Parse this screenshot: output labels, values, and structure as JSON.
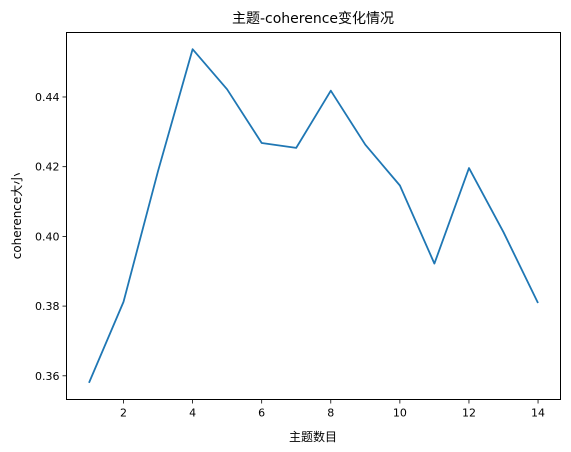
{
  "chart_data": {
    "type": "line",
    "title": "主题-coherence变化情况",
    "xlabel": "主题数目",
    "ylabel": "coherence大小",
    "x": [
      1,
      2,
      3,
      4,
      5,
      6,
      7,
      8,
      9,
      10,
      11,
      12,
      13,
      14
    ],
    "series": [
      {
        "values": [
          0.358,
          0.3812,
          0.4187,
          0.4537,
          0.4422,
          0.4268,
          0.4254,
          0.4418,
          0.4263,
          0.4146,
          0.3922,
          0.4196,
          0.4012,
          0.3809
        ],
        "color": "#1f77b4"
      }
    ],
    "xticks": [
      "2",
      "4",
      "6",
      "8",
      "10",
      "12",
      "14"
    ],
    "yticks": [
      "0.36",
      "0.38",
      "0.40",
      "0.42",
      "0.44"
    ],
    "xlim": [
      0.35,
      14.65
    ],
    "ylim": [
      0.3532,
      0.4585
    ],
    "grid": false,
    "legend": false
  }
}
